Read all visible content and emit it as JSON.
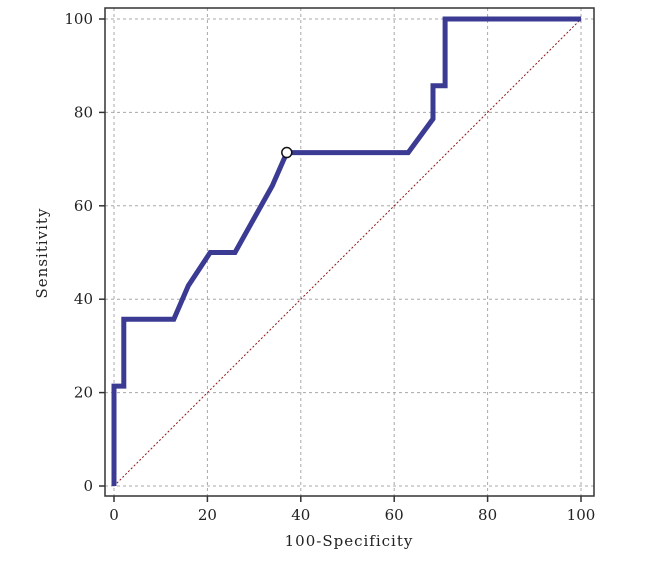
{
  "chart_data": {
    "type": "line",
    "title": "",
    "xlabel": "100-Specificity",
    "ylabel": "Sensitivity",
    "xlim": [
      0,
      100
    ],
    "ylim": [
      0,
      100
    ],
    "x_ticks": [
      "0",
      "20",
      "40",
      "60",
      "80",
      "100"
    ],
    "y_ticks": [
      "0",
      "20",
      "40",
      "60",
      "80",
      "100"
    ],
    "grid": true,
    "series": [
      {
        "color": "#3b3b94",
        "x": [
          0,
          0,
          2.1,
          2.1,
          12.8,
          15.9,
          20.6,
          25.9,
          33.9,
          37.0,
          63.0,
          68.3,
          68.3,
          70.9,
          70.9,
          100
        ],
        "y": [
          0,
          21.4,
          21.4,
          35.7,
          35.7,
          42.9,
          50.0,
          50.0,
          64.3,
          71.4,
          71.4,
          78.6,
          85.7,
          85.7,
          100,
          100
        ]
      },
      {
        "color": "#8b1a1a",
        "style": "dotted",
        "x": [
          0,
          100
        ],
        "y": [
          0,
          100
        ]
      }
    ],
    "markers": [
      {
        "x": 37.0,
        "y": 71.4,
        "shape": "open-circle"
      }
    ]
  }
}
